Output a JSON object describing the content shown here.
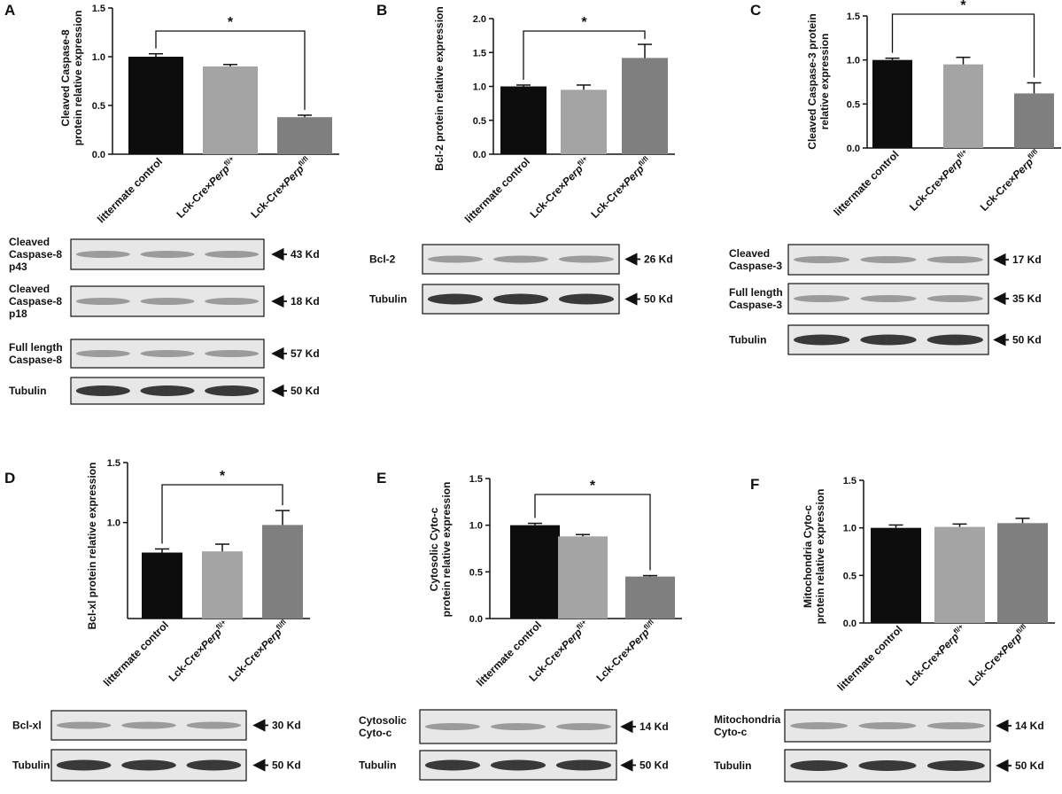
{
  "colors": {
    "bar": [
      "#0d0d0d",
      "#a4a4a4",
      "#7f7f7f"
    ],
    "axis": "#111111"
  },
  "panels": [
    {
      "letter": "A",
      "ylabel_lines": [
        "Cleaved Caspase-8",
        "protein relative expression"
      ],
      "yticks": [
        "0.0",
        "0.5",
        "1.0",
        "1.5"
      ],
      "blots": [
        {
          "label_lines": [
            "Cleaved",
            "Caspase-8",
            "p43"
          ],
          "kd": "43 Kd"
        },
        {
          "label_lines": [
            "Cleaved",
            "Caspase-8",
            "p18"
          ],
          "kd": "18 Kd"
        },
        {
          "label_lines": [
            "Full length",
            "Caspase-8"
          ],
          "kd": "57 Kd"
        },
        {
          "label_lines": [
            "Tubulin"
          ],
          "kd": "50 Kd"
        }
      ]
    },
    {
      "letter": "B",
      "ylabel_lines": [
        "Bcl-2 protein relative expression"
      ],
      "yticks": [
        "0.0",
        "0.5",
        "1.0",
        "1.5",
        "2.0"
      ],
      "blots": [
        {
          "label_lines": [
            "Bcl-2"
          ],
          "kd": "26 Kd"
        },
        {
          "label_lines": [
            "Tubulin"
          ],
          "kd": "50 Kd"
        }
      ]
    },
    {
      "letter": "C",
      "ylabel_lines": [
        "Cleaved Caspase-3 protein",
        "relative expression"
      ],
      "yticks": [
        "0.0",
        "0.5",
        "1.0",
        "1.5"
      ],
      "blots": [
        {
          "label_lines": [
            "Cleaved",
            "Caspase-3"
          ],
          "kd": "17 Kd"
        },
        {
          "label_lines": [
            "Full length",
            "Caspase-3"
          ],
          "kd": "35 Kd"
        },
        {
          "label_lines": [
            "Tubulin"
          ],
          "kd": "50 Kd"
        }
      ]
    },
    {
      "letter": "D",
      "ylabel_lines": [
        "Bcl-xl protein relative expression"
      ],
      "yticks": [
        "1.0",
        "1.5"
      ],
      "blots": [
        {
          "label_lines": [
            "Bcl-xl"
          ],
          "kd": "30 Kd"
        },
        {
          "label_lines": [
            "Tubulin"
          ],
          "kd": "50 Kd"
        }
      ]
    },
    {
      "letter": "E",
      "ylabel_lines": [
        "Cytosolic Cyto-c",
        "protein relative expression"
      ],
      "yticks": [
        "0.0",
        "0.5",
        "1.0",
        "1.5"
      ],
      "blots": [
        {
          "label_lines": [
            "Cytosolic",
            "Cyto-c"
          ],
          "kd": "14 Kd"
        },
        {
          "label_lines": [
            "Tubulin"
          ],
          "kd": "50 Kd"
        }
      ]
    },
    {
      "letter": "F",
      "ylabel_lines": [
        "Mitochondria Cyto-c",
        "protein relative expression"
      ],
      "yticks": [
        "0.0",
        "0.5",
        "1.0",
        "1.5"
      ],
      "blots": [
        {
          "label_lines": [
            "Mitochondria",
            "Cyto-c"
          ],
          "kd": "14 Kd"
        },
        {
          "label_lines": [
            "Tubulin"
          ],
          "kd": "50 Kd"
        }
      ]
    }
  ],
  "chart_data": [
    {
      "type": "bar",
      "panel": "A",
      "categories": [
        "littermate control",
        "Lck-Cre×Perp fl/+",
        "Lck-Cre×Perp fl/fl"
      ],
      "values": [
        1.0,
        0.9,
        0.38
      ],
      "errors": [
        0.03,
        0.02,
        0.02
      ],
      "ylabel": "Cleaved Caspase-8 protein relative expression",
      "ylim": [
        0,
        1.5
      ],
      "significance": [
        {
          "from": 0,
          "to": 2,
          "label": "*"
        }
      ]
    },
    {
      "type": "bar",
      "panel": "B",
      "categories": [
        "littermate control",
        "Lck-Cre×Perp fl/+",
        "Lck-Cre×Perp fl/fl"
      ],
      "values": [
        1.0,
        0.95,
        1.42
      ],
      "errors": [
        0.02,
        0.07,
        0.2
      ],
      "ylabel": "Bcl-2 protein relative expression",
      "ylim": [
        0,
        2.0
      ],
      "significance": [
        {
          "from": 0,
          "to": 2,
          "label": "*"
        }
      ]
    },
    {
      "type": "bar",
      "panel": "C",
      "categories": [
        "littermate control",
        "Lck-Cre×Perp fl/+",
        "Lck-Cre×Perp fl/fl"
      ],
      "values": [
        1.0,
        0.95,
        0.62
      ],
      "errors": [
        0.02,
        0.08,
        0.12
      ],
      "ylabel": "Cleaved Caspase-3 protein relative expression",
      "ylim": [
        0,
        1.5
      ],
      "significance": [
        {
          "from": 0,
          "to": 2,
          "label": "*"
        }
      ]
    },
    {
      "type": "bar",
      "panel": "D",
      "categories": [
        "littermate control",
        "Lck-Cre×Perp fl/+",
        "Lck-Cre×Perp fl/fl"
      ],
      "values": [
        0.75,
        0.76,
        0.98
      ],
      "errors": [
        0.03,
        0.06,
        0.12
      ],
      "ylabel": "Bcl-xl protein relative expression",
      "ylim": [
        0,
        1.5
      ],
      "significance": [
        {
          "from": 0,
          "to": 2,
          "label": "*"
        }
      ]
    },
    {
      "type": "bar",
      "panel": "E",
      "categories": [
        "littermate control",
        "Lck-Cre×Perp fl/+",
        "Lck-Cre×Perp fl/fl"
      ],
      "values": [
        1.0,
        0.88,
        0.45
      ],
      "errors": [
        0.02,
        0.02,
        0.01
      ],
      "ylabel": "Cytosolic Cyto-c protein relative expression",
      "ylim": [
        0,
        1.5
      ],
      "significance": [
        {
          "from": 0,
          "to": 2,
          "label": "*"
        }
      ]
    },
    {
      "type": "bar",
      "panel": "F",
      "categories": [
        "littermate control",
        "Lck-Cre×Perp fl/+",
        "Lck-Cre×Perp fl/fl"
      ],
      "values": [
        1.0,
        1.01,
        1.05
      ],
      "errors": [
        0.03,
        0.03,
        0.05
      ],
      "ylabel": "Mitochondria Cyto-c protein relative expression",
      "ylim": [
        0,
        1.5
      ],
      "significance": []
    }
  ]
}
